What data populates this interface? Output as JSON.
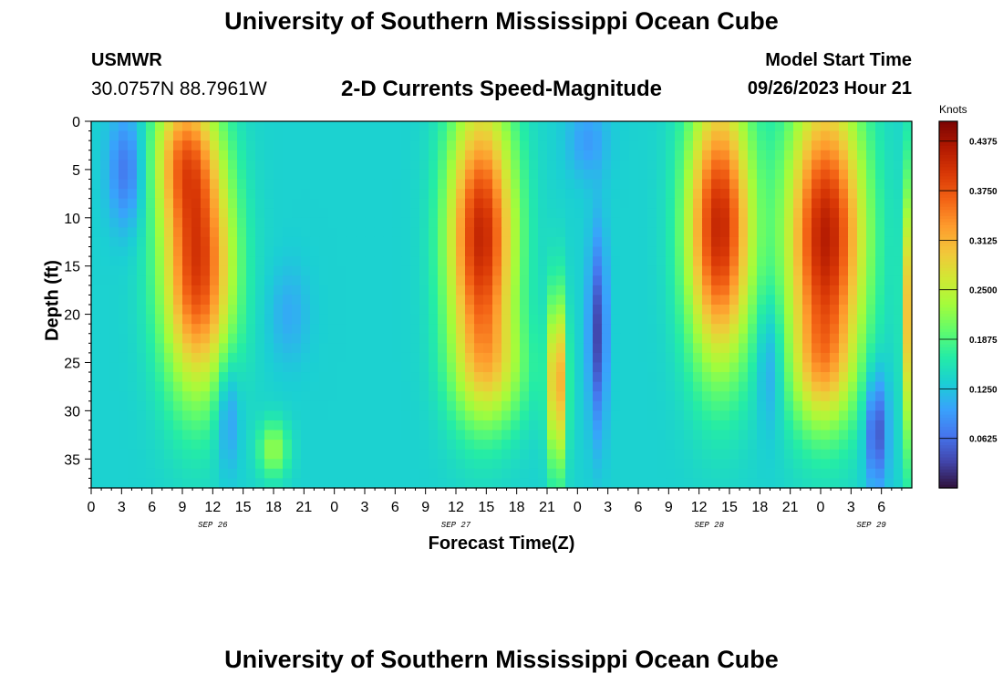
{
  "page": {
    "title": "University of Southern Mississippi Ocean Cube",
    "station": "USMWR",
    "coordinates": "30.0757N  88.7961W",
    "chart_title": "2-D Currents Speed-Magnitude",
    "model_start_label": "Model Start Time",
    "model_start_value": "09/26/2023 Hour 21",
    "bottom_title": "University of Southern Mississippi Ocean Cube"
  },
  "colors": {
    "colormap": [
      "#30123b",
      "#4145ab",
      "#4675ed",
      "#39a2fc",
      "#1bcfd4",
      "#24eca6",
      "#61fc6c",
      "#a4fc3b",
      "#d1e834",
      "#f3c63a",
      "#fe9b2d",
      "#f36315",
      "#d93806",
      "#b11901",
      "#7a0403"
    ]
  },
  "chart_data": {
    "type": "heatmap",
    "title": "2-D Currents Speed-Magnitude",
    "xlabel": "Forecast Time(Z)",
    "ylabel": "Depth (ft)",
    "x_range_hours": [
      0,
      81
    ],
    "y_range_ft": [
      0,
      38
    ],
    "y_ticks": [
      0,
      5,
      10,
      15,
      20,
      25,
      30,
      35
    ],
    "x_tick_labels": [
      "0",
      "3",
      "6",
      "9",
      "12",
      "15",
      "18",
      "21",
      "0",
      "3",
      "6",
      "9",
      "12",
      "15",
      "18",
      "21",
      "0",
      "3",
      "6",
      "9",
      "12",
      "15",
      "18",
      "21",
      "0",
      "3",
      "6"
    ],
    "date_labels": [
      {
        "label": "SEP 26",
        "hour": 12
      },
      {
        "label": "SEP 27",
        "hour": 36
      },
      {
        "label": "SEP 28",
        "hour": 61
      },
      {
        "label": "SEP 29",
        "hour": 77
      }
    ],
    "colorbar": {
      "unit": "Knots",
      "range": [
        0.0,
        0.4625
      ],
      "tick_labels": [
        "0.4375",
        "0.3750",
        "0.3125",
        "0.2500",
        "0.1875",
        "0.1250",
        "0.0625"
      ],
      "tick_values": [
        0.4375,
        0.375,
        0.3125,
        0.25,
        0.1875,
        0.125,
        0.0625
      ]
    },
    "features": [
      {
        "name": "high-band-1",
        "hour": 10.5,
        "depth": 15,
        "time_width": 3.5,
        "depth_width": 13,
        "speed": 0.26
      },
      {
        "name": "high-band-1-top",
        "hour": 9.0,
        "depth": 3,
        "time_width": 3.0,
        "depth_width": 7,
        "speed": 0.14
      },
      {
        "name": "low-left-top",
        "hour": 3.5,
        "depth": 5,
        "time_width": 1.8,
        "depth_width": 6,
        "speed": -0.07
      },
      {
        "name": "high-band-2",
        "hour": 38.5,
        "depth": 12,
        "time_width": 3.3,
        "depth_width": 14,
        "speed": 0.28
      },
      {
        "name": "high-band-2-lower",
        "hour": 39.5,
        "depth": 26,
        "time_width": 3.8,
        "depth_width": 6,
        "speed": 0.08
      },
      {
        "name": "high-band-3",
        "hour": 62.0,
        "depth": 11,
        "time_width": 3.2,
        "depth_width": 14,
        "speed": 0.28
      },
      {
        "name": "high-band-4",
        "hour": 72.5,
        "depth": 12,
        "time_width": 3.8,
        "depth_width": 15,
        "speed": 0.29
      },
      {
        "name": "high-band-4-lower",
        "hour": 72.0,
        "depth": 26,
        "time_width": 3.0,
        "depth_width": 6,
        "speed": 0.08
      },
      {
        "name": "narrow-high-1",
        "hour": 46.0,
        "depth": 27,
        "time_width": 0.9,
        "depth_width": 9,
        "speed": 0.2
      },
      {
        "name": "green-spot-1",
        "hour": 18.0,
        "depth": 34,
        "time_width": 1.5,
        "depth_width": 3,
        "speed": 0.09
      },
      {
        "name": "low-1",
        "hour": 13.5,
        "depth": 30,
        "time_width": 1.2,
        "depth_width": 6,
        "speed": -0.06
      },
      {
        "name": "low-2",
        "hour": 19.5,
        "depth": 20,
        "time_width": 2.0,
        "depth_width": 5,
        "speed": -0.03
      },
      {
        "name": "low-3",
        "hour": 50.0,
        "depth": 22,
        "time_width": 0.9,
        "depth_width": 10,
        "speed": -0.1
      },
      {
        "name": "low-3-top",
        "hour": 49.0,
        "depth": 2,
        "time_width": 2.0,
        "depth_width": 4,
        "speed": -0.04
      },
      {
        "name": "low-4",
        "hour": 67.0,
        "depth": 25,
        "time_width": 1.3,
        "depth_width": 7,
        "speed": -0.05
      },
      {
        "name": "low-5",
        "hour": 77.5,
        "depth": 32,
        "time_width": 1.1,
        "depth_width": 6,
        "speed": -0.1
      },
      {
        "name": "edge-high-right",
        "hour": 81.0,
        "depth": 20,
        "time_width": 0.8,
        "depth_width": 14,
        "speed": 0.22
      }
    ],
    "base_speed": 0.135
  }
}
